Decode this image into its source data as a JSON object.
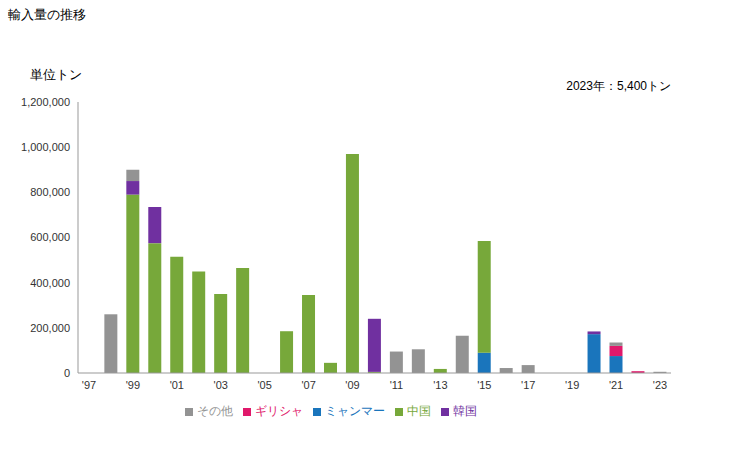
{
  "chart_data": {
    "type": "bar",
    "title": "輸入量の推移",
    "ylabel": "単位トン",
    "annotations": [
      "2023年：5,400トン"
    ],
    "stacked": true,
    "grid": false,
    "legend": "bottom",
    "categories": [
      "'97",
      null,
      "'99",
      null,
      "'01",
      null,
      "'03",
      null,
      "'05",
      null,
      "'07",
      null,
      "'09",
      null,
      "'11",
      null,
      "'13",
      null,
      "'15",
      null,
      "'17",
      null,
      "'19",
      null,
      "'21",
      null,
      "'23"
    ],
    "ylim": [
      0,
      1200000
    ],
    "yticks": [
      0,
      {
        "value": 200000,
        "label": "200,000"
      },
      {
        "value": 400000,
        "label": "400,000"
      },
      {
        "value": 600000,
        "label": "600,000"
      },
      {
        "value": 800000,
        "label": "800,000"
      },
      {
        "value": 1000000,
        "label": "1,000,000"
      },
      {
        "value": 1200000,
        "label": "1,200,000"
      }
    ],
    "series": [
      {
        "name": "ミャンマー",
        "color": "#1a75bc",
        "values": [
          0,
          0,
          0,
          0,
          0,
          0,
          0,
          0,
          0,
          0,
          0,
          0,
          0,
          0,
          0,
          0,
          0,
          0,
          90000,
          0,
          0,
          0,
          0,
          172000,
          75000,
          0,
          0
        ]
      },
      {
        "name": "ギリシャ",
        "color": "#e0196b",
        "values": [
          0,
          0,
          0,
          0,
          0,
          0,
          0,
          0,
          0,
          0,
          0,
          0,
          0,
          0,
          0,
          0,
          0,
          0,
          0,
          0,
          0,
          0,
          0,
          0,
          45000,
          8000,
          0
        ]
      },
      {
        "name": "中国",
        "color": "#77a83a",
        "values": [
          0,
          0,
          790000,
          575000,
          515000,
          450000,
          350000,
          465000,
          0,
          185000,
          345000,
          45000,
          970000,
          5000,
          0,
          0,
          18000,
          0,
          495000,
          0,
          0,
          0,
          0,
          0,
          0,
          0,
          0
        ]
      },
      {
        "name": "韓国",
        "color": "#7030a0",
        "values": [
          0,
          0,
          60000,
          160000,
          0,
          0,
          0,
          0,
          0,
          0,
          0,
          0,
          0,
          235000,
          0,
          0,
          0,
          0,
          0,
          0,
          0,
          0,
          0,
          12000,
          0,
          0,
          0
        ]
      },
      {
        "name": "その他",
        "color": "#939393",
        "values": [
          0,
          260000,
          50000,
          0,
          0,
          0,
          0,
          0,
          0,
          0,
          0,
          0,
          0,
          0,
          95000,
          105000,
          0,
          165000,
          0,
          22000,
          35000,
          0,
          0,
          0,
          15000,
          0,
          5400
        ]
      }
    ]
  }
}
